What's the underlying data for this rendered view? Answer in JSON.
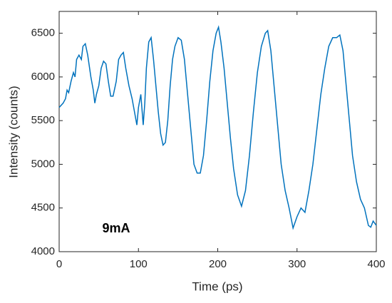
{
  "chart_data": {
    "type": "line",
    "xlabel": "Time (ps)",
    "ylabel": "Intensity (counts)",
    "annotation": "9mA",
    "x": [
      0,
      5,
      8,
      10,
      12,
      15,
      18,
      20,
      22,
      25,
      28,
      30,
      33,
      36,
      40,
      43,
      45,
      47,
      50,
      53,
      56,
      59,
      62,
      65,
      68,
      72,
      75,
      78,
      81,
      84,
      88,
      92,
      95,
      98,
      100,
      103,
      106,
      108,
      110,
      113,
      116,
      119,
      122,
      125,
      128,
      131,
      134,
      137,
      140,
      143,
      146,
      150,
      154,
      158,
      162,
      166,
      170,
      174,
      178,
      182,
      186,
      190,
      194,
      198,
      201,
      204,
      208,
      212,
      216,
      220,
      225,
      230,
      235,
      240,
      245,
      250,
      255,
      260,
      263,
      267,
      271,
      276,
      280,
      285,
      290,
      295,
      300,
      305,
      310,
      315,
      320,
      325,
      330,
      335,
      340,
      345,
      350,
      354,
      358,
      362,
      366,
      370,
      375,
      380,
      385,
      390,
      393,
      396,
      400
    ],
    "series": [
      {
        "color": "#0072bd",
        "values": [
          5650,
          5700,
          5750,
          5850,
          5820,
          5950,
          6050,
          6000,
          6200,
          6250,
          6200,
          6350,
          6380,
          6250,
          6000,
          5850,
          5700,
          5800,
          5900,
          6100,
          6180,
          6150,
          5950,
          5780,
          5780,
          5950,
          6200,
          6250,
          6280,
          6100,
          5900,
          5750,
          5600,
          5450,
          5650,
          5800,
          5450,
          5700,
          6100,
          6400,
          6450,
          6200,
          5900,
          5600,
          5350,
          5220,
          5250,
          5500,
          5900,
          6200,
          6350,
          6450,
          6420,
          6200,
          5800,
          5400,
          5000,
          4900,
          4900,
          5100,
          5500,
          5950,
          6300,
          6500,
          6570,
          6400,
          6100,
          5700,
          5300,
          4950,
          4650,
          4520,
          4700,
          5100,
          5600,
          6050,
          6350,
          6500,
          6530,
          6300,
          5900,
          5400,
          5000,
          4700,
          4500,
          4270,
          4400,
          4500,
          4450,
          4700,
          5000,
          5400,
          5800,
          6100,
          6350,
          6450,
          6450,
          6480,
          6300,
          5900,
          5500,
          5100,
          4800,
          4600,
          4500,
          4300,
          4280,
          4350,
          4300
        ]
      }
    ],
    "xlim": [
      0,
      400
    ],
    "xticks": [
      0,
      100,
      200,
      300,
      400
    ],
    "ylim": [
      4000,
      6750
    ],
    "yticks": [
      4000,
      4500,
      5000,
      5500,
      6000,
      6500
    ]
  }
}
